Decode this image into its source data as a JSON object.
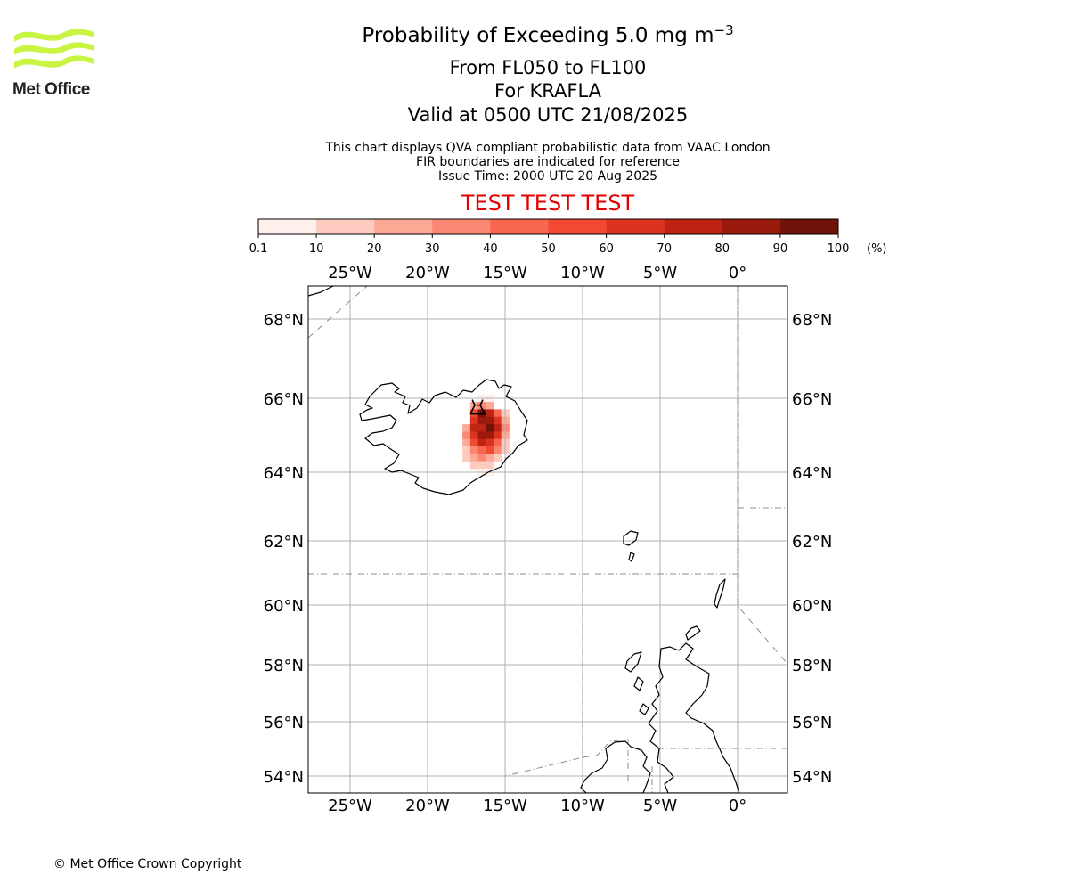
{
  "header": {
    "title_main": "Probability of Exceeding 5.0 mg m",
    "title_exp": "−3",
    "level_range": "From FL050 to FL100",
    "volcano": "For KRAFLA",
    "valid_time": "Valid at 0500 UTC 21/08/2025",
    "note_line1": "This chart displays QVA compliant probabilistic data from VAAC London",
    "note_line2": "FIR boundaries are indicated for reference",
    "issue_time": "Issue Time: 2000 UTC 20 Aug 2025",
    "test_banner": "TEST TEST TEST"
  },
  "logo": {
    "text": "Met Office",
    "icon": "met-office-wave-logo",
    "color": "#c8f542"
  },
  "colorbar": {
    "ticks": [
      "0.1",
      "10",
      "20",
      "30",
      "40",
      "50",
      "60",
      "70",
      "80",
      "90",
      "100"
    ],
    "unit": "(%)",
    "colors": [
      "#fff0ec",
      "#fdcbbf",
      "#fca996",
      "#fb8872",
      "#f8664f",
      "#f24a32",
      "#db3320",
      "#bf2313",
      "#9b1a0d",
      "#721309"
    ]
  },
  "map": {
    "lon_ticks": [
      {
        "value": -25,
        "label": "25°W"
      },
      {
        "value": -20,
        "label": "20°W"
      },
      {
        "value": -15,
        "label": "15°W"
      },
      {
        "value": -10,
        "label": "10°W"
      },
      {
        "value": -5,
        "label": "5°W"
      },
      {
        "value": 0,
        "label": "0°"
      }
    ],
    "lat_ticks": [
      {
        "value": 68,
        "label": "68°N"
      },
      {
        "value": 66,
        "label": "66°N"
      },
      {
        "value": 64,
        "label": "64°N"
      },
      {
        "value": 62,
        "label": "62°N"
      },
      {
        "value": 60,
        "label": "60°N"
      },
      {
        "value": 58,
        "label": "58°N"
      },
      {
        "value": 56,
        "label": "56°N"
      },
      {
        "value": 54,
        "label": "54°N"
      }
    ],
    "extent": {
      "lon_min": -27.7,
      "lon_max": 3.3,
      "lat_min": 53.5,
      "lat_max": 68.9
    },
    "volcano_location": {
      "lat": 65.72,
      "lon": -16.78
    },
    "probability_cells": [
      {
        "lat": 66.0,
        "lon": -16.5,
        "prob": 5
      },
      {
        "lat": 66.0,
        "lon": -16.0,
        "prob": 5
      },
      {
        "lat": 65.8,
        "lon": -17.0,
        "prob": 25
      },
      {
        "lat": 65.8,
        "lon": -16.5,
        "prob": 35
      },
      {
        "lat": 65.8,
        "lon": -16.0,
        "prob": 25
      },
      {
        "lat": 65.6,
        "lon": -17.0,
        "prob": 55
      },
      {
        "lat": 65.6,
        "lon": -16.5,
        "prob": 95
      },
      {
        "lat": 65.6,
        "lon": -16.0,
        "prob": 75
      },
      {
        "lat": 65.6,
        "lon": -15.5,
        "prob": 45
      },
      {
        "lat": 65.6,
        "lon": -15.0,
        "prob": 15
      },
      {
        "lat": 65.4,
        "lon": -17.0,
        "prob": 65
      },
      {
        "lat": 65.4,
        "lon": -16.5,
        "prob": 85
      },
      {
        "lat": 65.4,
        "lon": -16.0,
        "prob": 85
      },
      {
        "lat": 65.4,
        "lon": -15.5,
        "prob": 65
      },
      {
        "lat": 65.4,
        "lon": -15.0,
        "prob": 25
      },
      {
        "lat": 65.2,
        "lon": -17.5,
        "prob": 25
      },
      {
        "lat": 65.2,
        "lon": -17.0,
        "prob": 75
      },
      {
        "lat": 65.2,
        "lon": -16.5,
        "prob": 75
      },
      {
        "lat": 65.2,
        "lon": -16.0,
        "prob": 95
      },
      {
        "lat": 65.2,
        "lon": -15.5,
        "prob": 75
      },
      {
        "lat": 65.2,
        "lon": -15.0,
        "prob": 35
      },
      {
        "lat": 65.0,
        "lon": -17.5,
        "prob": 35
      },
      {
        "lat": 65.0,
        "lon": -17.0,
        "prob": 65
      },
      {
        "lat": 65.0,
        "lon": -16.5,
        "prob": 85
      },
      {
        "lat": 65.0,
        "lon": -16.0,
        "prob": 85
      },
      {
        "lat": 65.0,
        "lon": -15.5,
        "prob": 65
      },
      {
        "lat": 65.0,
        "lon": -15.0,
        "prob": 25
      },
      {
        "lat": 64.8,
        "lon": -17.5,
        "prob": 25
      },
      {
        "lat": 64.8,
        "lon": -17.0,
        "prob": 55
      },
      {
        "lat": 64.8,
        "lon": -16.5,
        "prob": 75
      },
      {
        "lat": 64.8,
        "lon": -16.0,
        "prob": 65
      },
      {
        "lat": 64.8,
        "lon": -15.5,
        "prob": 45
      },
      {
        "lat": 64.8,
        "lon": -15.0,
        "prob": 15
      },
      {
        "lat": 64.6,
        "lon": -17.5,
        "prob": 15
      },
      {
        "lat": 64.6,
        "lon": -17.0,
        "prob": 35
      },
      {
        "lat": 64.6,
        "lon": -16.5,
        "prob": 45
      },
      {
        "lat": 64.6,
        "lon": -16.0,
        "prob": 55
      },
      {
        "lat": 64.6,
        "lon": -15.5,
        "prob": 35
      },
      {
        "lat": 64.6,
        "lon": -15.0,
        "prob": 15
      },
      {
        "lat": 64.4,
        "lon": -17.5,
        "prob": 15
      },
      {
        "lat": 64.4,
        "lon": -17.0,
        "prob": 25
      },
      {
        "lat": 64.4,
        "lon": -16.5,
        "prob": 35
      },
      {
        "lat": 64.4,
        "lon": -16.0,
        "prob": 25
      },
      {
        "lat": 64.4,
        "lon": -15.5,
        "prob": 15
      },
      {
        "lat": 64.2,
        "lon": -17.0,
        "prob": 15
      },
      {
        "lat": 64.2,
        "lon": -16.5,
        "prob": 15
      },
      {
        "lat": 64.2,
        "lon": -16.0,
        "prob": 15
      },
      {
        "lat": 64.0,
        "lon": -16.5,
        "prob": 5
      },
      {
        "lat": 64.0,
        "lon": -16.0,
        "prob": 5
      }
    ]
  },
  "footer": {
    "copyright": "© Met Office Crown Copyright"
  }
}
